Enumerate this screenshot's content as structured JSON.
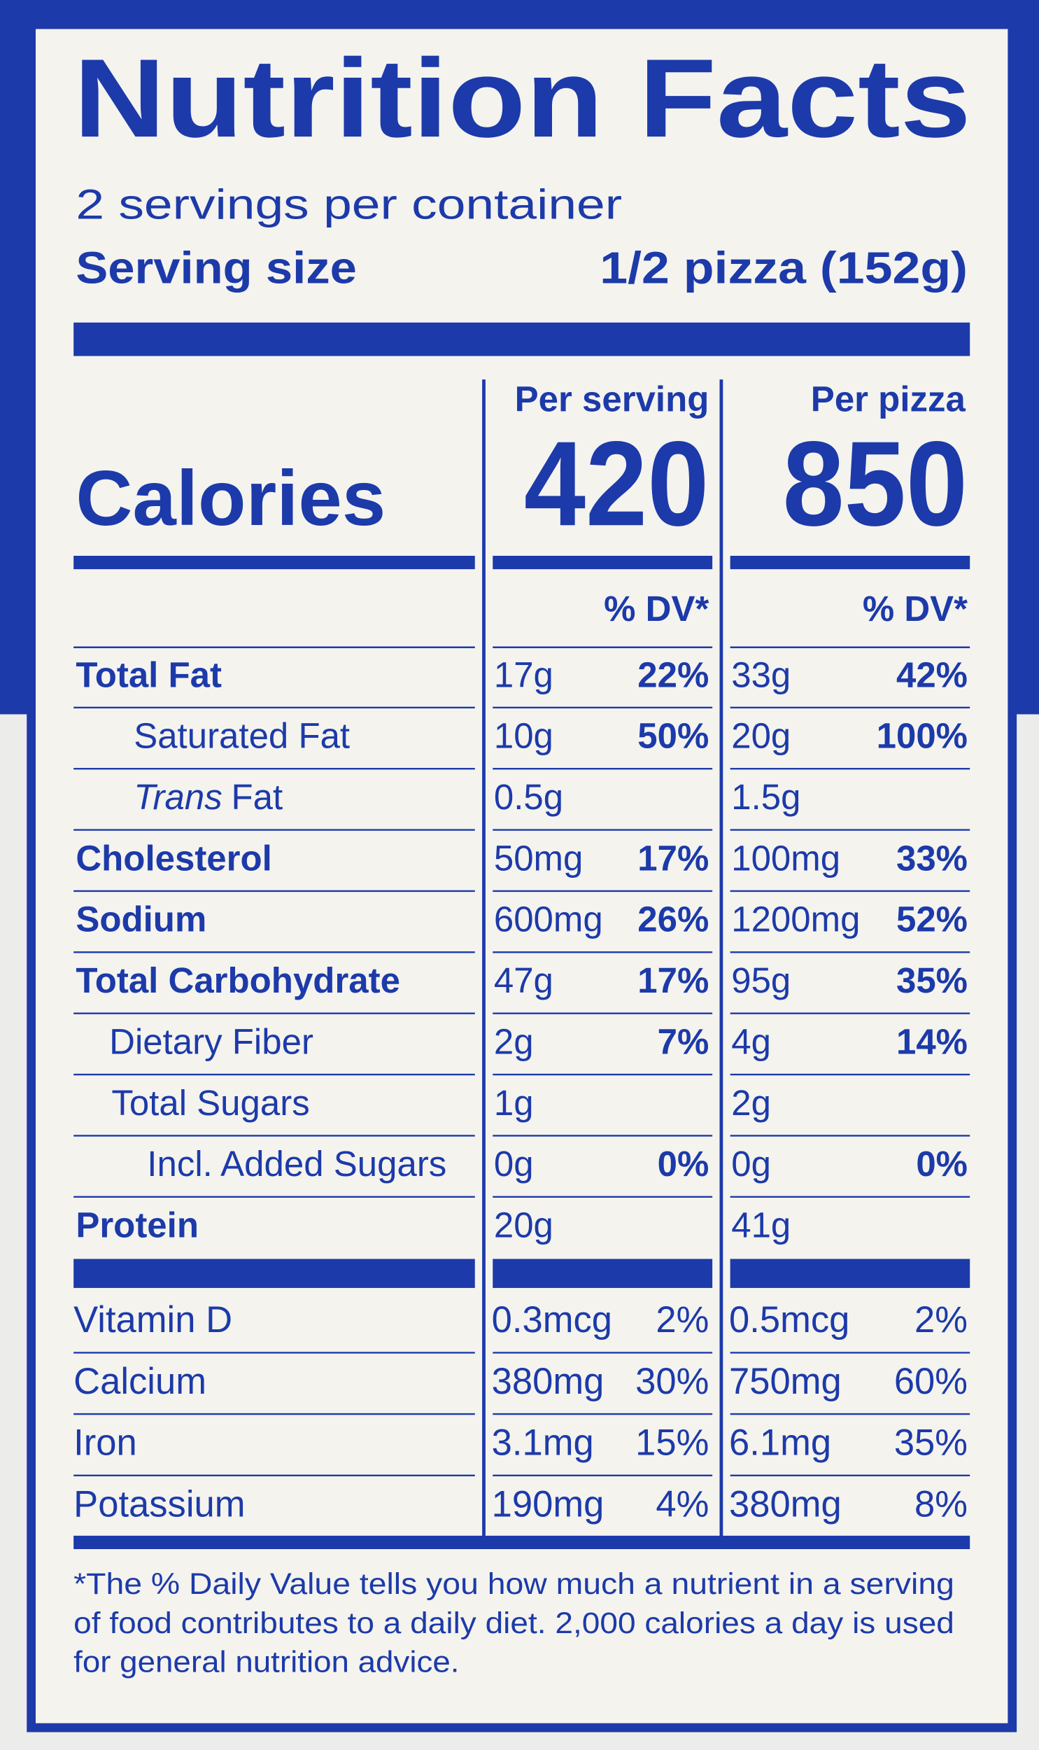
{
  "header": {
    "title": "Nutrition Facts",
    "servings_per_container": "2 servings per container",
    "serving_size_label": "Serving size",
    "serving_size_value": "1/2 pizza (152g)"
  },
  "columns": [
    "Per serving",
    "Per pizza"
  ],
  "calories": {
    "label": "Calories",
    "values": [
      "420",
      "850"
    ]
  },
  "dv_header": [
    "% DV*",
    "% DV*"
  ],
  "rows": [
    {
      "label": "Total Fat",
      "cells": [
        [
          "17g",
          "22%"
        ],
        [
          "33g",
          "42%"
        ]
      ]
    },
    {
      "label": "Saturated Fat",
      "cells": [
        [
          "10g",
          "50%"
        ],
        [
          "20g",
          "100%"
        ]
      ]
    },
    {
      "label_italic": "Trans",
      "label": "Fat",
      "cells": [
        [
          "0.5g"
        ],
        [
          "1.5g"
        ]
      ]
    },
    {
      "label": "Cholesterol",
      "cells": [
        [
          "50mg",
          "17%"
        ],
        [
          "100mg",
          "33%"
        ]
      ]
    },
    {
      "label": "Sodium",
      "cells": [
        [
          "600mg",
          "26%"
        ],
        [
          "1200mg",
          "52%"
        ]
      ]
    },
    {
      "label": "Total Carbohydrate",
      "cells": [
        [
          "47g",
          "17%"
        ],
        [
          "95g",
          "35%"
        ]
      ]
    },
    {
      "label": "Dietary Fiber",
      "cells": [
        [
          "2g",
          "7%"
        ],
        [
          "4g",
          "14%"
        ]
      ]
    },
    {
      "label": "Total Sugars",
      "cells": [
        [
          "1g"
        ],
        [
          "2g"
        ]
      ]
    },
    {
      "label": "Incl. Added Sugars",
      "cells": [
        [
          "0g",
          "0%"
        ],
        [
          "0g",
          "0%"
        ]
      ]
    },
    {
      "label": "Protein",
      "cells": [
        [
          "20g"
        ],
        [
          "41g"
        ]
      ]
    }
  ],
  "vitamins": [
    {
      "label": "Vitamin D",
      "cells": [
        [
          "0.3mcg",
          "2%"
        ],
        [
          "0.5mcg",
          "2%"
        ]
      ]
    },
    {
      "label": "Calcium",
      "cells": [
        [
          "380mg",
          "30%"
        ],
        [
          "750mg",
          "60%"
        ]
      ]
    },
    {
      "label": "Iron",
      "cells": [
        [
          "3.1mg",
          "15%"
        ],
        [
          "6.1mg",
          "35%"
        ]
      ]
    },
    {
      "label": "Potassium",
      "cells": [
        [
          "190mg",
          "4%"
        ],
        [
          "380mg",
          "8%"
        ]
      ]
    }
  ],
  "footnote": [
    "*The % Daily Value tells you how much a nutrient in a serving",
    "of food contributes to a daily diet. 2,000 calories a day is used",
    "for general nutrition advice."
  ]
}
